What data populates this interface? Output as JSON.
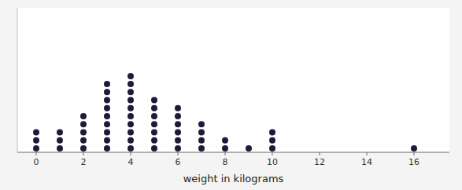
{
  "chart_data": {
    "type": "dot_plot",
    "x": [
      0,
      1,
      2,
      3,
      4,
      5,
      6,
      7,
      8,
      9,
      10,
      16
    ],
    "values": [
      3,
      3,
      5,
      9,
      10,
      7,
      6,
      4,
      2,
      1,
      3,
      1
    ],
    "xlabel": "weight in kilograms",
    "xlim": [
      -0.8,
      17.5
    ],
    "ylim": [
      0,
      18
    ],
    "xticks": [
      0,
      2,
      4,
      6,
      8,
      10,
      12,
      14,
      16
    ],
    "yticks": [],
    "tick_labels": "x",
    "grid": false,
    "color": "#1c1c3a"
  }
}
